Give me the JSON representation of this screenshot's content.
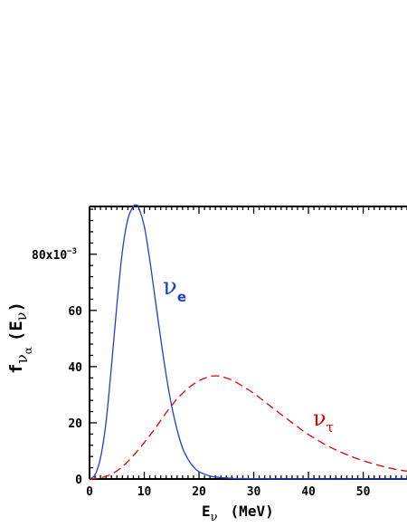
{
  "chart_data": {
    "type": "line",
    "xlabel": {
      "main": "E",
      "sub": "ν",
      "unit": "(MeV)"
    },
    "ylabel": {
      "main": "f",
      "sub": "ν",
      "subsub": "α",
      "arg": "(E",
      "arg_sub": "ν",
      "arg_close": ")"
    },
    "xlim": [
      0,
      58
    ],
    "ylim": [
      0,
      97
    ],
    "x_ticks": [
      0,
      10,
      20,
      30,
      40,
      50
    ],
    "x_tick_labels": [
      "0",
      "10",
      "20",
      "30",
      "40",
      "50"
    ],
    "x_cut_label": "6",
    "y_ticks": [
      0,
      20,
      40,
      60,
      80
    ],
    "y_tick_labels": [
      "0",
      "20",
      "40",
      "60",
      ""
    ],
    "y_top_label": {
      "base": "80x10",
      "exp": "−3"
    },
    "series": [
      {
        "name_main": "ν",
        "name_sub": "e",
        "color": "#1f3fd1",
        "style": "solid",
        "x": [
          0,
          1,
          2,
          3,
          4,
          5,
          6,
          7,
          8,
          8.5,
          9,
          10,
          11,
          12,
          13,
          14,
          15,
          16,
          17,
          18,
          19,
          20,
          22,
          24,
          26,
          28,
          30,
          35,
          40,
          50,
          58
        ],
        "y": [
          0,
          1.5,
          7.5,
          20,
          40,
          62,
          81,
          92.5,
          97,
          97.5,
          96.5,
          90,
          78,
          64,
          50,
          37,
          26,
          17.5,
          11,
          7,
          4.3,
          2.6,
          1.1,
          0.5,
          0.25,
          0.15,
          0.1,
          0.05,
          0.02,
          0,
          0
        ]
      },
      {
        "name_main": "ν",
        "name_sub": "τ",
        "color": "#e60000",
        "style": "dashed",
        "x": [
          0,
          2,
          4,
          6,
          8,
          10,
          12,
          14,
          16,
          18,
          20,
          22,
          23,
          24,
          26,
          28,
          30,
          32,
          34,
          36,
          38,
          40,
          44,
          48,
          52,
          56,
          58
        ],
        "y": [
          0,
          0.4,
          1.7,
          4.4,
          8.3,
          13,
          18,
          23.6,
          28.5,
          32.3,
          35,
          36.5,
          36.7,
          36.5,
          35.2,
          33,
          30.5,
          27.5,
          24.5,
          21.5,
          18.6,
          15.8,
          11.3,
          7.9,
          5.3,
          3.4,
          2.8
        ]
      }
    ]
  }
}
